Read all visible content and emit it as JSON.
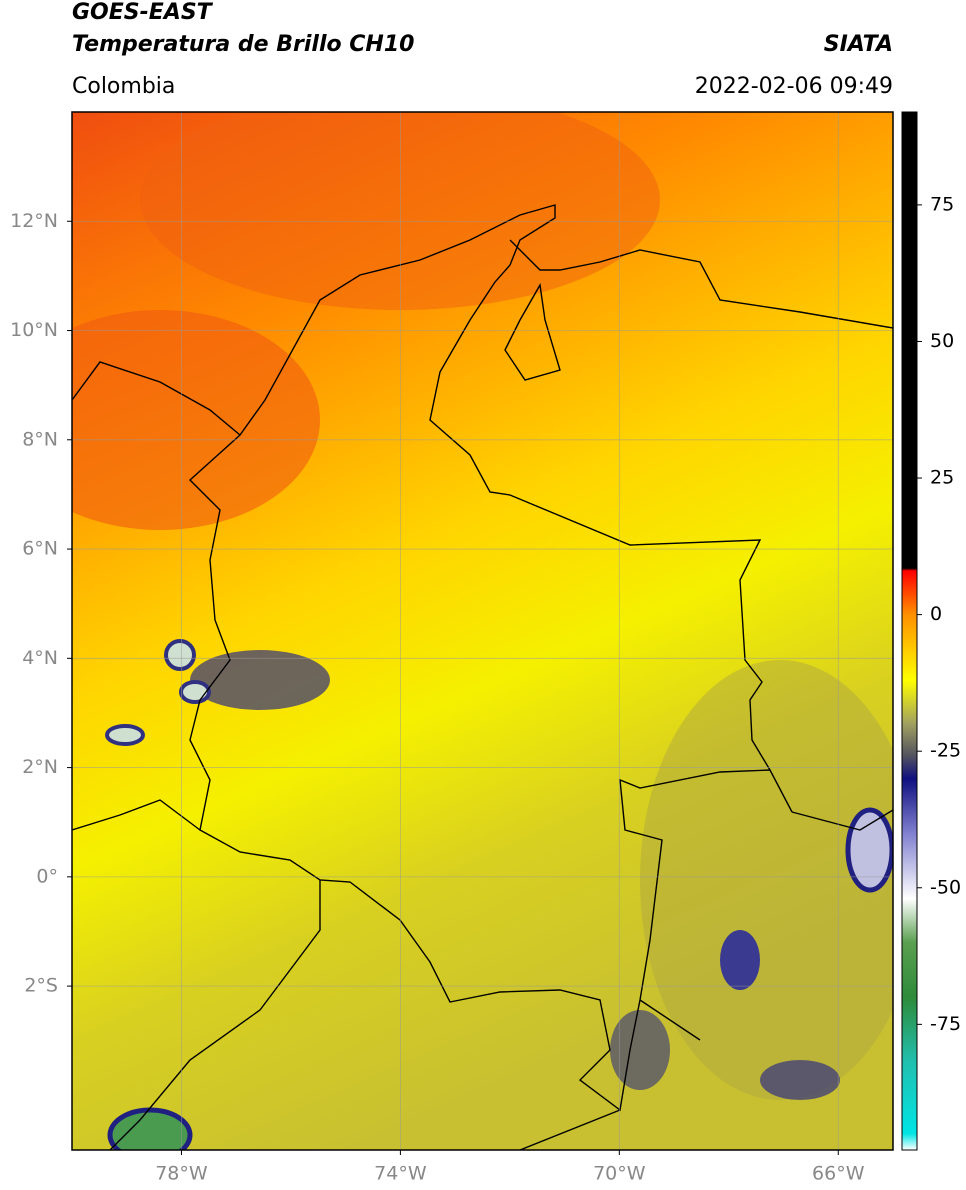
{
  "header": {
    "title_line1": "GOES-EAST",
    "title_line2": "Temperatura de Brillo CH10",
    "source": "SIATA",
    "region": "Colombia",
    "timestamp": "2022-02-06 09:49"
  },
  "map": {
    "lonlim": [
      -80,
      -65
    ],
    "latlim": [
      -5,
      14
    ],
    "xticks": [
      {
        "value": -78,
        "label": "78°W"
      },
      {
        "value": -74,
        "label": "74°W"
      },
      {
        "value": -70,
        "label": "70°W"
      },
      {
        "value": -66,
        "label": "66°W"
      }
    ],
    "yticks": [
      {
        "value": 12,
        "label": "12°N"
      },
      {
        "value": 10,
        "label": "10°N"
      },
      {
        "value": 8,
        "label": "8°N"
      },
      {
        "value": 6,
        "label": "6°N"
      },
      {
        "value": 4,
        "label": "4°N"
      },
      {
        "value": 2,
        "label": "2°N"
      },
      {
        "value": 0,
        "label": "0°"
      },
      {
        "value": -2,
        "label": "2°S"
      }
    ],
    "grid": true
  },
  "colorbar": {
    "lim": [
      -98,
      92
    ],
    "ticks": [
      75,
      50,
      25,
      0,
      -25,
      -50,
      -75
    ],
    "colormap": [
      {
        "value": -98,
        "color": "#ffffff"
      },
      {
        "value": -95,
        "color": "#00e5e5"
      },
      {
        "value": -82,
        "color": "#20c0b0"
      },
      {
        "value": -70,
        "color": "#2e8b3a"
      },
      {
        "value": -60,
        "color": "#5aa050"
      },
      {
        "value": -52,
        "color": "#ffffff"
      },
      {
        "value": -40,
        "color": "#8080d0"
      },
      {
        "value": -30,
        "color": "#101080"
      },
      {
        "value": -26,
        "color": "#505060"
      },
      {
        "value": -20,
        "color": "#a0a060"
      },
      {
        "value": -12,
        "color": "#ffff00"
      },
      {
        "value": 0,
        "color": "#ff9000"
      },
      {
        "value": 8,
        "color": "#ff0000"
      },
      {
        "value": 8.5,
        "color": "#000000"
      },
      {
        "value": 92,
        "color": "#000000"
      }
    ]
  }
}
